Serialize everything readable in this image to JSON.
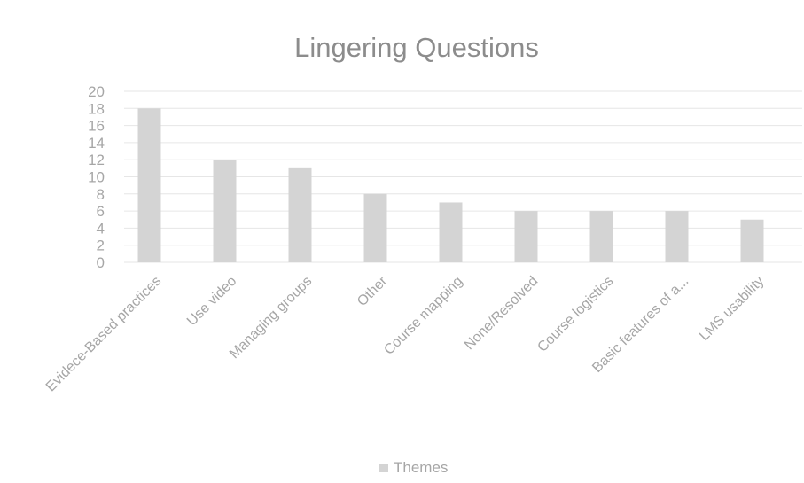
{
  "chart_data": {
    "type": "bar",
    "title": "Lingering Questions",
    "categories": [
      "Evidece-Based practices",
      "Use video",
      "Managing groups",
      "Other",
      "Course mapping",
      "None/Resolved",
      "Course logistics",
      "Basic features of a...",
      "LMS usability"
    ],
    "series": [
      {
        "name": "Themes",
        "values": [
          18,
          12,
          11,
          8,
          7,
          6,
          6,
          6,
          5
        ]
      }
    ],
    "xlabel": "",
    "ylabel": "",
    "ylim": [
      0,
      20
    ],
    "yticks": [
      0,
      2,
      4,
      6,
      8,
      10,
      12,
      14,
      16,
      18,
      20
    ],
    "grid": true,
    "legend": "bottom",
    "colors": {
      "bar": "#d4d4d4",
      "grid": "#e6e6e6",
      "text": "#a6a6a6",
      "title": "#8c8c8c"
    }
  }
}
